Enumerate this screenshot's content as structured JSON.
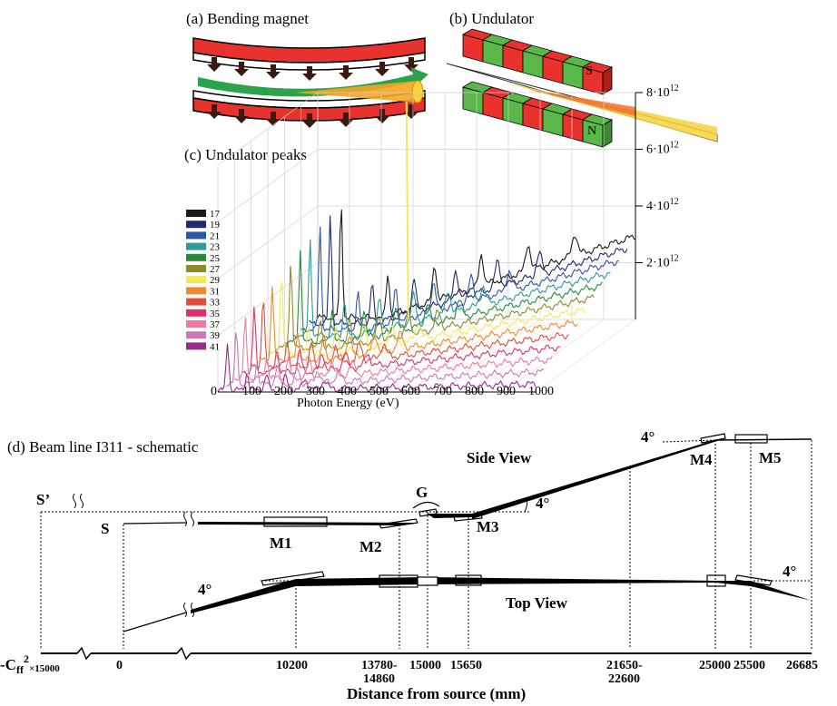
{
  "panels": {
    "a": {
      "label": "(a)  Bending magnet"
    },
    "b": {
      "label": "(b)  Undulator",
      "magnet_s": "S",
      "magnet_n": "N"
    },
    "c": {
      "label": "(c)  Undulator peaks",
      "xlabel": "Photon Energy (eV)",
      "x_ticks": [
        "0",
        "100",
        "200",
        "300",
        "400",
        "500",
        "600",
        "700",
        "800",
        "900",
        "1000"
      ],
      "z_ticks": [
        {
          "base": "8·10",
          "exp": "12"
        },
        {
          "base": "6·10",
          "exp": "12"
        },
        {
          "base": "4·10",
          "exp": "12"
        },
        {
          "base": "2·10",
          "exp": "12"
        }
      ],
      "legend": [
        {
          "name": "17",
          "color": "#1a1a1a"
        },
        {
          "name": "19",
          "color": "#1f2a6e"
        },
        {
          "name": "21",
          "color": "#2f55a8"
        },
        {
          "name": "23",
          "color": "#2e9a9a"
        },
        {
          "name": "25",
          "color": "#2a8a3a"
        },
        {
          "name": "27",
          "color": "#8c8c2a"
        },
        {
          "name": "29",
          "color": "#f2ea5a"
        },
        {
          "name": "31",
          "color": "#f08a2a"
        },
        {
          "name": "33",
          "color": "#e84a3a"
        },
        {
          "name": "35",
          "color": "#e0306a"
        },
        {
          "name": "37",
          "color": "#f07aa0"
        },
        {
          "name": "39",
          "color": "#c87ab8"
        },
        {
          "name": "41",
          "color": "#9a2a8a"
        }
      ]
    },
    "d": {
      "label": "(d)  Beam line I311 - schematic",
      "side_view": "Side View",
      "top_view": "Top View",
      "s_prime": "S’",
      "s": "S",
      "g": "G",
      "mirrors": [
        "M1",
        "M2",
        "M3",
        "M4",
        "M5"
      ],
      "angles": [
        "4°",
        "4°",
        "4°",
        "4°"
      ],
      "distance_label": "Distance from source (mm)",
      "distance_ticks": [
        {
          "top": "0"
        },
        {
          "top": "10200"
        },
        {
          "top": "13780-",
          "bottom": "14860"
        },
        {
          "top": "15000"
        },
        {
          "top": "15650"
        },
        {
          "top": "21650-",
          "bottom": "22600"
        },
        {
          "top": "25000"
        },
        {
          "top": "25500"
        },
        {
          "top": "26685"
        }
      ],
      "origin_label": {
        "pre": "-C",
        "sub": "ff",
        "sup": "2",
        "post": "×15000"
      }
    }
  }
}
